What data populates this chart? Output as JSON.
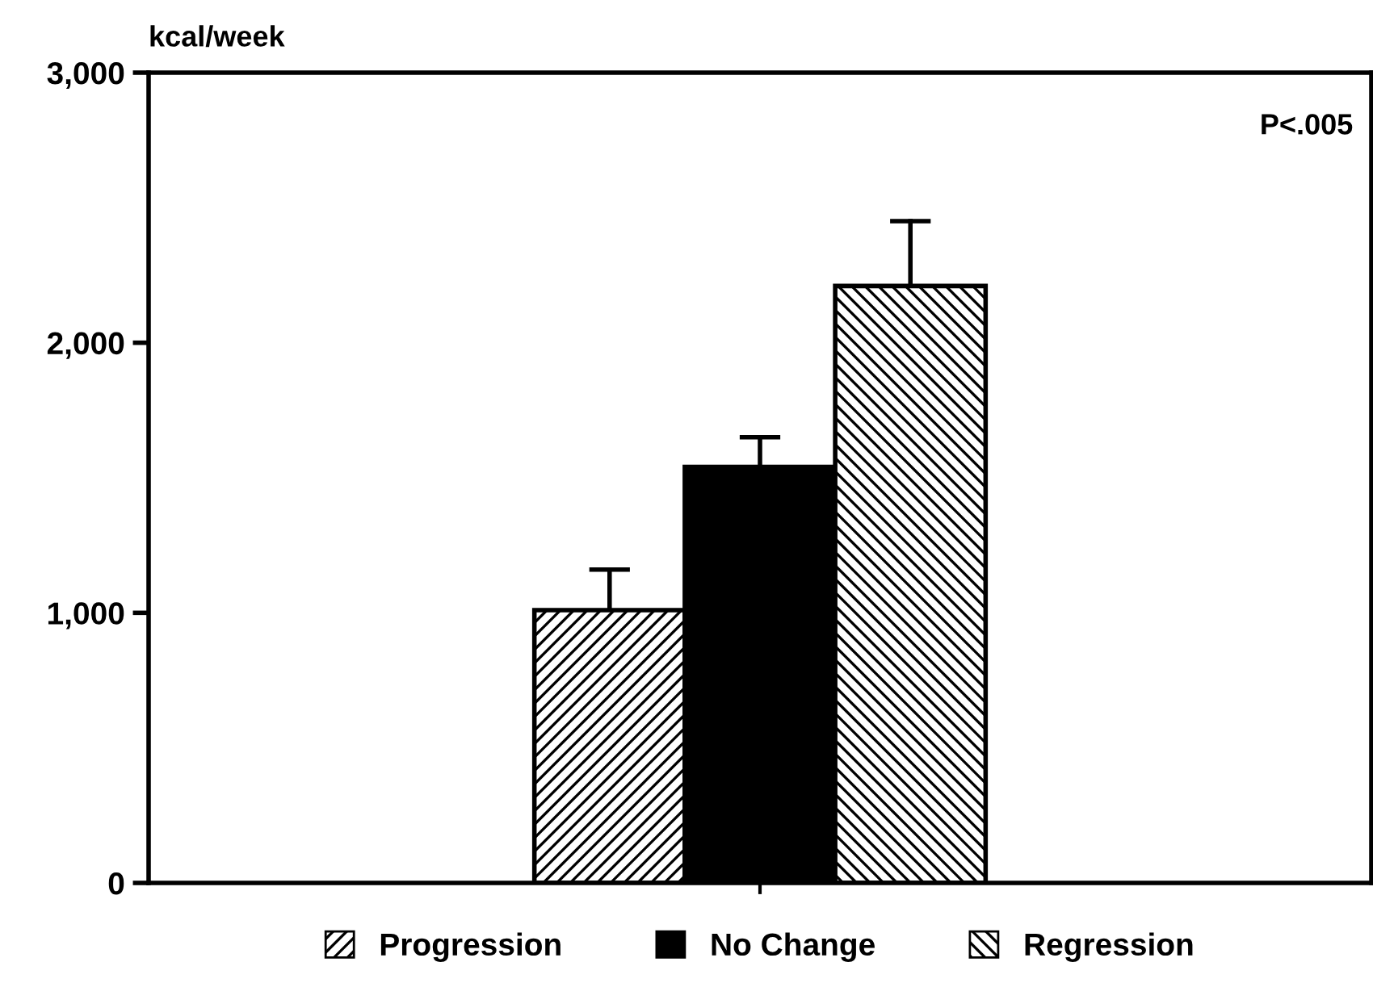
{
  "chart_data": {
    "type": "bar",
    "ylabel": "kcal/week",
    "categories": [
      null
    ],
    "series": [
      {
        "name": "Progression",
        "color": "#000000",
        "values": [
          1010
        ],
        "errors": [
          150
        ]
      },
      {
        "name": "No Change",
        "color": "#000000",
        "values": [
          1540
        ],
        "errors": [
          110
        ]
      },
      {
        "name": "Regression",
        "color": "#000000",
        "values": [
          2210
        ],
        "errors": [
          240
        ]
      }
    ],
    "ylim": [
      0,
      3000
    ],
    "yticks": [
      0,
      {
        "value": 1000,
        "label": "1,000"
      },
      {
        "value": 2000,
        "label": "2,000"
      },
      {
        "value": 3000,
        "label": "3,000"
      }
    ],
    "annotations": [
      "P<.005"
    ],
    "grid": false,
    "legend": "bottom"
  }
}
